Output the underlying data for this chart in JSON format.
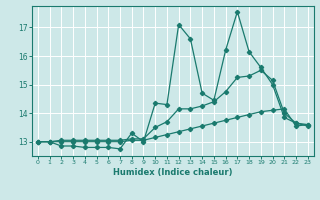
{
  "bg_color": "#cde8e8",
  "grid_color": "#ffffff",
  "line_color": "#1a7a6e",
  "xlabel": "Humidex (Indice chaleur)",
  "xlim": [
    -0.5,
    23.5
  ],
  "ylim": [
    12.5,
    17.75
  ],
  "yticks": [
    13,
    14,
    15,
    16,
    17
  ],
  "xticks": [
    0,
    1,
    2,
    3,
    4,
    5,
    6,
    7,
    8,
    9,
    10,
    11,
    12,
    13,
    14,
    15,
    16,
    17,
    18,
    19,
    20,
    21,
    22,
    23
  ],
  "series1_x": [
    0,
    1,
    2,
    3,
    4,
    5,
    6,
    7,
    8,
    9,
    10,
    11,
    12,
    13,
    14,
    15,
    16,
    17,
    18,
    19,
    20,
    21,
    22,
    23
  ],
  "series1_y": [
    13.0,
    13.0,
    12.85,
    12.85,
    12.8,
    12.8,
    12.8,
    12.75,
    13.3,
    13.0,
    14.35,
    14.3,
    17.1,
    16.6,
    14.7,
    14.45,
    16.2,
    17.55,
    16.15,
    15.6,
    15.0,
    13.85,
    13.65,
    13.55
  ],
  "series2_x": [
    0,
    1,
    2,
    3,
    4,
    5,
    6,
    7,
    8,
    9,
    10,
    11,
    12,
    13,
    14,
    15,
    16,
    17,
    18,
    19,
    20,
    21,
    22,
    23
  ],
  "series2_y": [
    13.0,
    13.0,
    13.0,
    13.0,
    13.0,
    13.0,
    13.0,
    13.0,
    13.05,
    13.05,
    13.15,
    13.25,
    13.35,
    13.45,
    13.55,
    13.65,
    13.75,
    13.85,
    13.95,
    14.05,
    14.1,
    14.15,
    13.55,
    13.6
  ],
  "series3_x": [
    0,
    1,
    2,
    3,
    4,
    5,
    6,
    7,
    8,
    9,
    10,
    11,
    12,
    13,
    14,
    15,
    16,
    17,
    18,
    19,
    20,
    21,
    22,
    23
  ],
  "series3_y": [
    13.0,
    13.0,
    13.05,
    13.05,
    13.05,
    13.05,
    13.05,
    13.05,
    13.1,
    13.1,
    13.5,
    13.7,
    14.15,
    14.15,
    14.25,
    14.4,
    14.75,
    15.25,
    15.3,
    15.5,
    15.15,
    14.0,
    13.65,
    13.6
  ]
}
